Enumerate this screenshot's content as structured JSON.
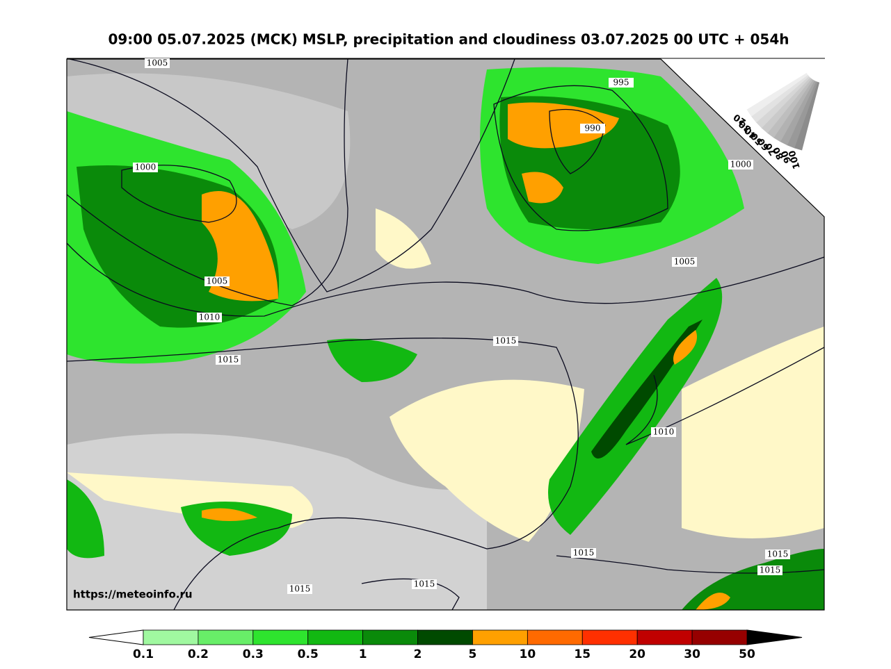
{
  "title": "09:00 05.07.2025 (MCK) MSLP, precipitation and cloudiness 03.07.2025 00 UTC + 054h",
  "source": "https://meteoinfo.ru",
  "isobar_labels": [
    "1005",
    "995",
    "990",
    "1000",
    "1000",
    "1005",
    "1005",
    "1010",
    "1015",
    "1015",
    "1010",
    "1015",
    "1015",
    "1015",
    "1015",
    "1015"
  ],
  "cloudiness_scale": {
    "labels": [
      "100",
      "90",
      "80",
      "70",
      "60",
      "50",
      "40",
      "30",
      "20"
    ],
    "colors": [
      "#8c8c8c",
      "#999999",
      "#a5a5a5",
      "#b2b2b2",
      "#bebebe",
      "#cacaca",
      "#d6d6d6",
      "#e2e2e2",
      "#eeeeee"
    ]
  },
  "precipitation_scale": {
    "labels": [
      "0.1",
      "0.2",
      "0.3",
      "0.5",
      "1",
      "2",
      "5",
      "10",
      "15",
      "20",
      "30",
      "50"
    ],
    "colors": [
      "#a0f8a0",
      "#68ee68",
      "#2ee42e",
      "#12b812",
      "#0a8a0a",
      "#004a00",
      "#ffa000",
      "#ff6a00",
      "#ff3000",
      "#c00000",
      "#960000"
    ],
    "below_color": "#ffffff",
    "above_color": "#000000"
  }
}
